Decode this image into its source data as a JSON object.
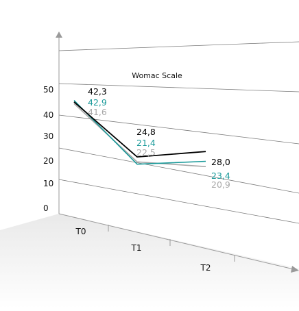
{
  "chart_data": {
    "type": "line",
    "title": "Womac Scale",
    "categories": [
      "T0",
      "T1",
      "T2"
    ],
    "y_ticks": [
      "50",
      "40",
      "30",
      "20",
      "10",
      "0"
    ],
    "ylim": [
      0,
      50
    ],
    "grid": true,
    "series": [
      {
        "key": "black",
        "values": [
          42.3,
          24.8,
          28.0
        ],
        "labels": [
          "42,3",
          "24,8",
          "28,0"
        ],
        "color": "#000000"
      },
      {
        "key": "teal",
        "values": [
          42.9,
          21.4,
          23.4
        ],
        "labels": [
          "42,9",
          "21,4",
          "23,4"
        ],
        "color": "#1a9a9a"
      },
      {
        "key": "gray",
        "values": [
          41.6,
          22.5,
          20.9
        ],
        "labels": [
          "41,6",
          "22,5",
          "20,9"
        ],
        "color": "#a8a8a8"
      }
    ]
  }
}
